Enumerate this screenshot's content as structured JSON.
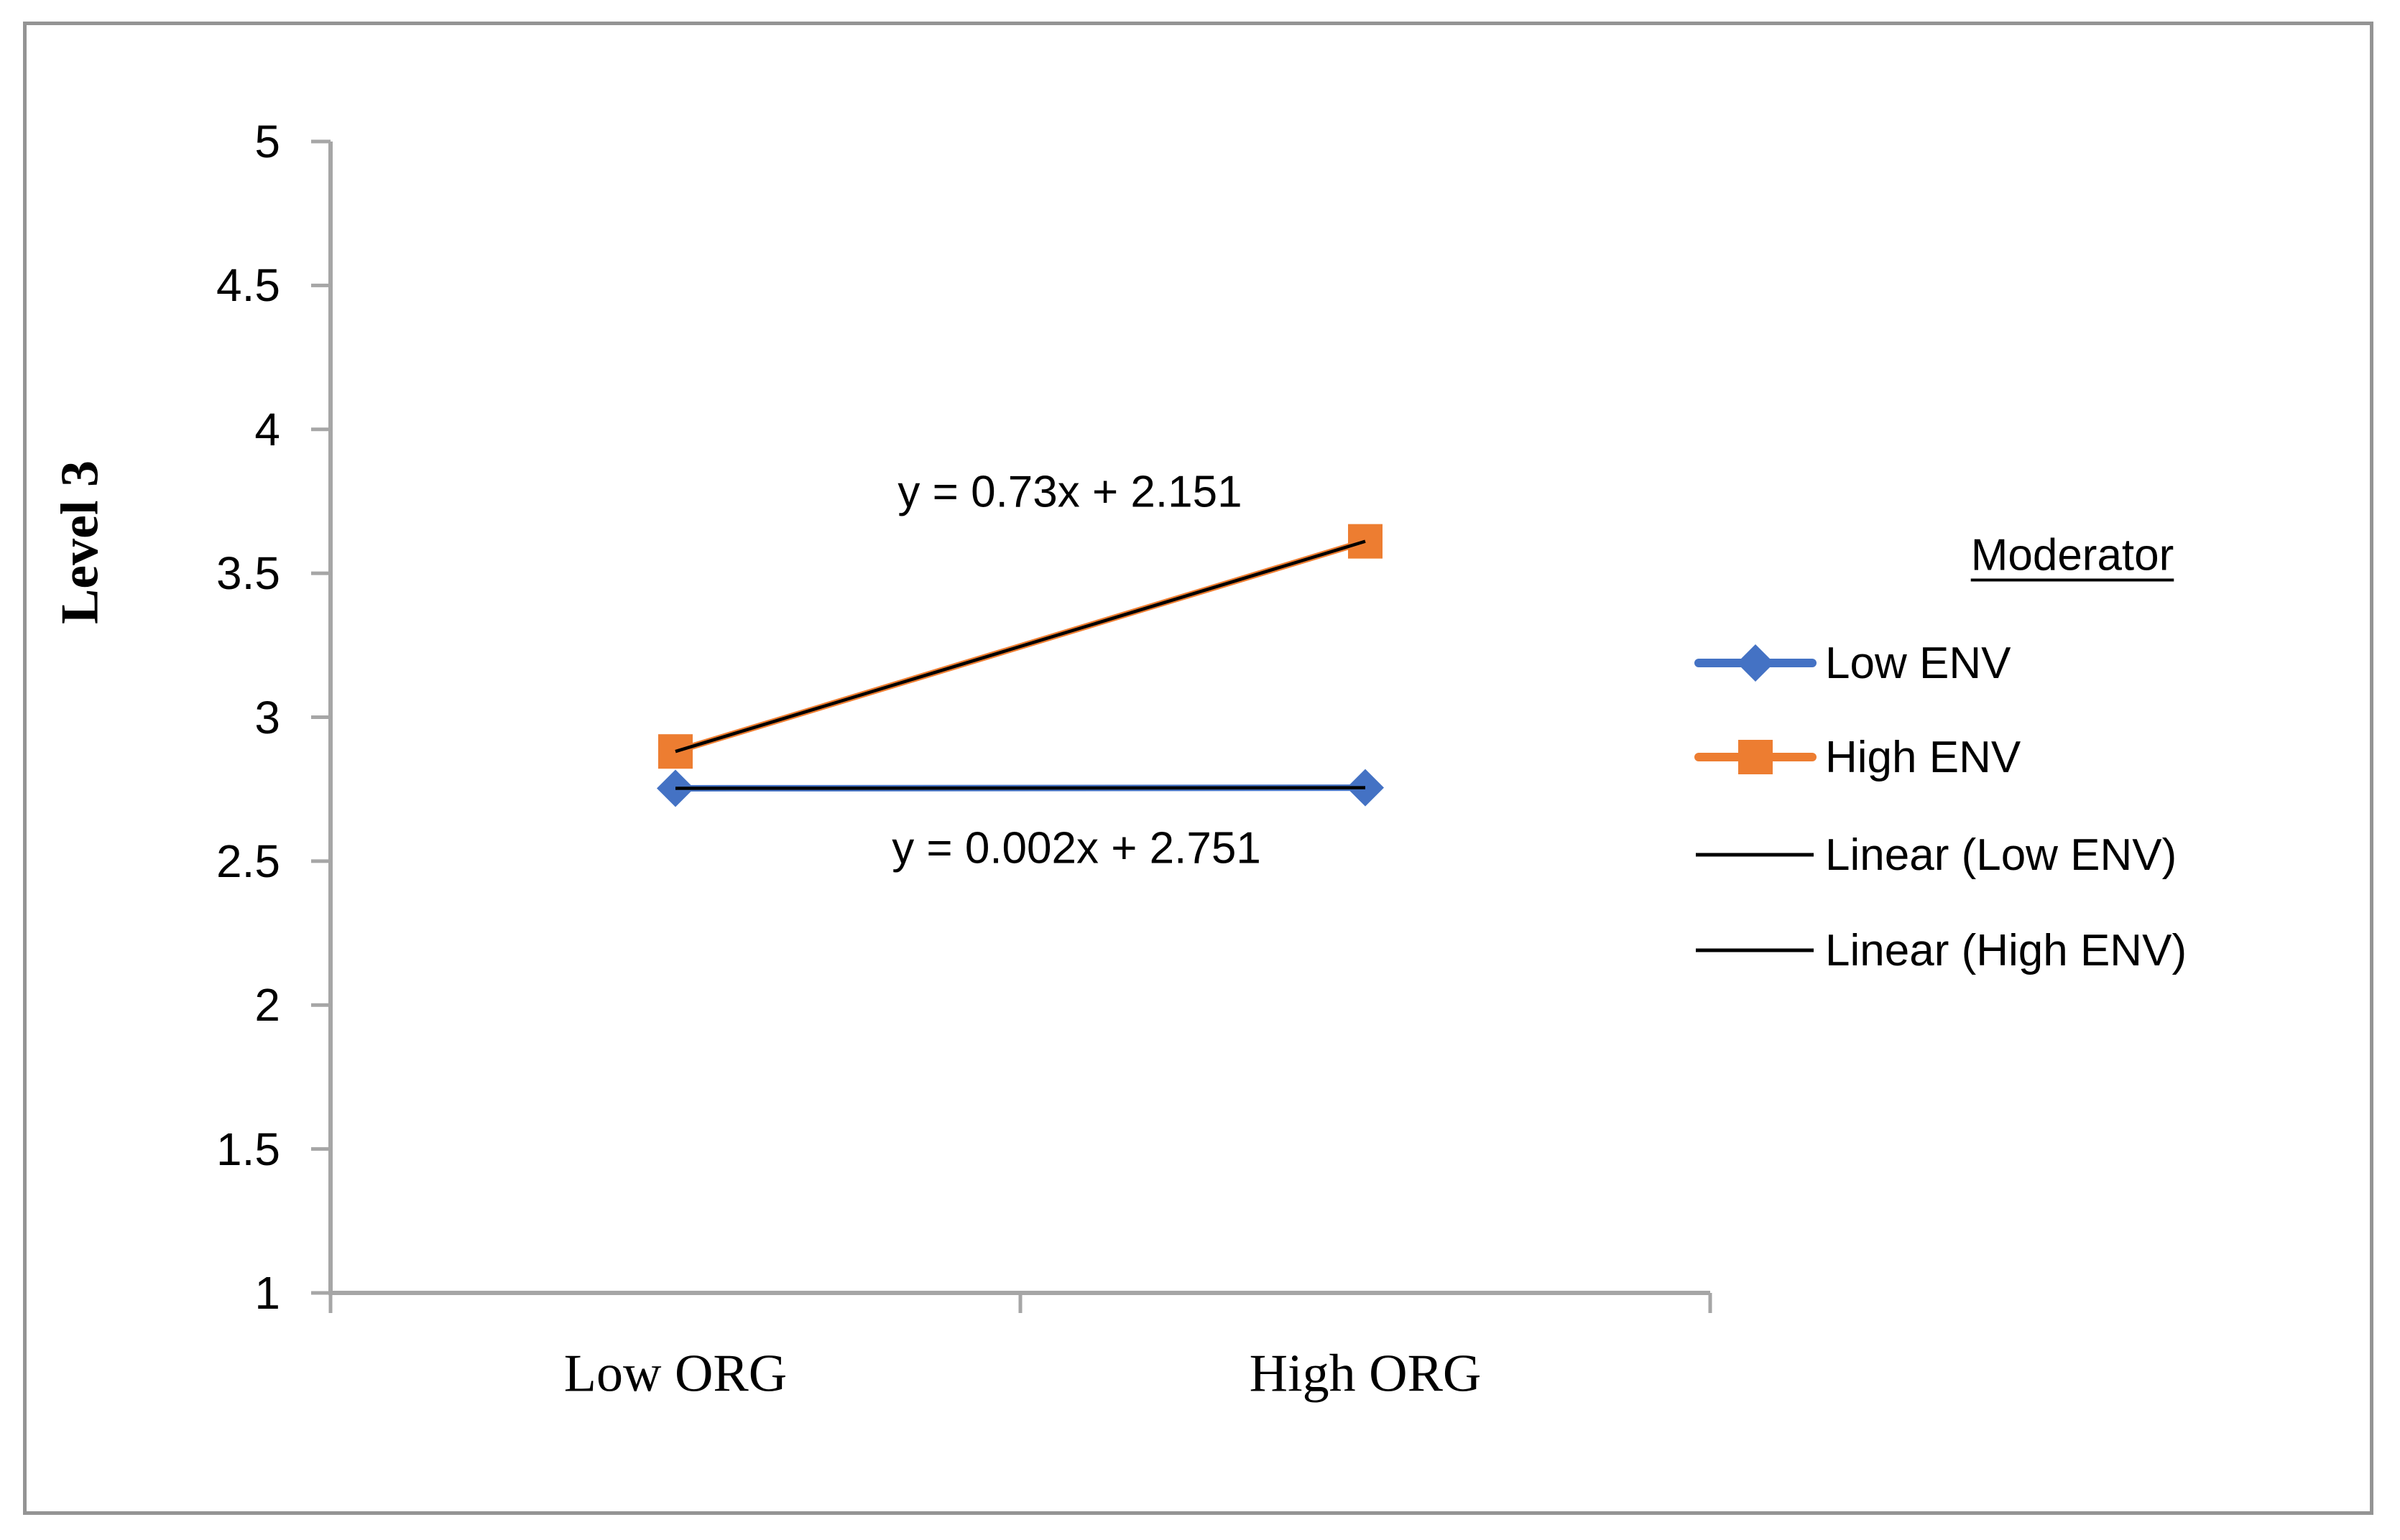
{
  "colors": {
    "low_env": "#4472C4",
    "high_env": "#ED7D31",
    "trendline": "#000000",
    "axis": "#A6A6A6",
    "border": "#949494",
    "text": "#000000"
  },
  "chart_data": {
    "type": "line",
    "title": "",
    "categories": [
      "Low ORG",
      "High ORG"
    ],
    "series": [
      {
        "name": "Low ENV",
        "values": [
          2.753,
          2.755
        ],
        "color": "#4472C4",
        "marker": "diamond"
      },
      {
        "name": "High ENV",
        "values": [
          2.881,
          3.611
        ],
        "color": "#ED7D31",
        "marker": "square"
      }
    ],
    "trendlines": [
      {
        "for": "High ENV",
        "equation": "y = 0.73x + 2.151",
        "color": "#000000"
      },
      {
        "for": "Low ENV",
        "equation": "y = 0.002x + 2.751",
        "color": "#000000"
      }
    ],
    "xlabel": "",
    "ylabel": "Level 3",
    "ylim": [
      1,
      5
    ],
    "ytick_step": 0.5,
    "y_tick_labels": [
      "5",
      "4.5",
      "4",
      "3.5",
      "3",
      "2.5",
      "2",
      "1.5",
      "1"
    ],
    "grid": false,
    "legend": {
      "position": "right",
      "title": "Moderator",
      "entries": [
        {
          "label": "Low ENV",
          "marker": "blue-line-diamond"
        },
        {
          "label": "High ENV",
          "marker": "orange-line-square"
        },
        {
          "label": "Linear (Low ENV)",
          "marker": "black-thin-line"
        },
        {
          "label": "Linear (High ENV)",
          "marker": "black-thin-line"
        }
      ]
    }
  }
}
